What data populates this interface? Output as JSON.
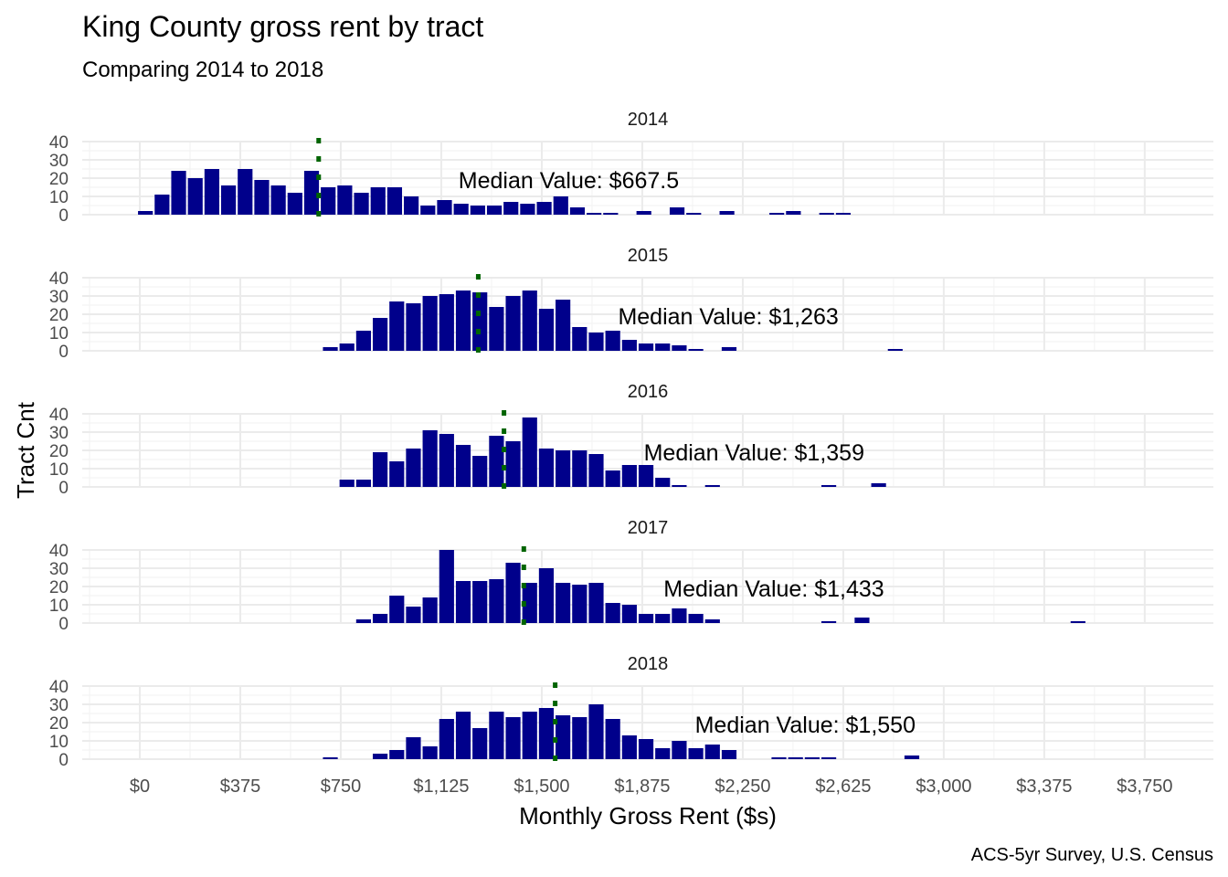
{
  "chart_data": {
    "type": "bar",
    "title": "King County gross rent by tract",
    "subtitle": "Comparing 2014 to 2018",
    "xlabel": "Monthly Gross Rent ($s)",
    "ylabel": "Tract Cnt",
    "caption": "ACS-5yr Survey, U.S. Census",
    "xlim": [
      -100,
      3900
    ],
    "ylim": [
      0,
      40
    ],
    "grid": true,
    "bin_width": 62,
    "x_ticks": [
      {
        "value": 0,
        "label": "$0"
      },
      {
        "value": 375,
        "label": "$375"
      },
      {
        "value": 750,
        "label": "$750"
      },
      {
        "value": 1125,
        "label": "$1,125"
      },
      {
        "value": 1500,
        "label": "$1,500"
      },
      {
        "value": 1875,
        "label": "$1,875"
      },
      {
        "value": 2250,
        "label": "$2,250"
      },
      {
        "value": 2625,
        "label": "$2,625"
      },
      {
        "value": 3000,
        "label": "$3,000"
      },
      {
        "value": 3375,
        "label": "$3,375"
      },
      {
        "value": 3750,
        "label": "$3,750"
      }
    ],
    "y_ticks": [
      {
        "value": 0,
        "label": "0"
      },
      {
        "value": 10,
        "label": "10"
      },
      {
        "value": 20,
        "label": "20"
      },
      {
        "value": 30,
        "label": "30"
      },
      {
        "value": 40,
        "label": "40"
      }
    ],
    "bar_color": "#00008B",
    "median_color": "#006400",
    "panels": [
      {
        "year": "2014",
        "median": 667.5,
        "median_label": "Median Value: $667.5",
        "bins": [
          [
            -10,
            2
          ],
          [
            52,
            11
          ],
          [
            114,
            24
          ],
          [
            176,
            20
          ],
          [
            238,
            25
          ],
          [
            300,
            16
          ],
          [
            362,
            25
          ],
          [
            424,
            19
          ],
          [
            486,
            16
          ],
          [
            548,
            12
          ],
          [
            610,
            24
          ],
          [
            672,
            15
          ],
          [
            734,
            16
          ],
          [
            796,
            12
          ],
          [
            858,
            15
          ],
          [
            920,
            15
          ],
          [
            982,
            10
          ],
          [
            1044,
            5
          ],
          [
            1106,
            8
          ],
          [
            1168,
            6
          ],
          [
            1230,
            5
          ],
          [
            1292,
            5
          ],
          [
            1354,
            7
          ],
          [
            1416,
            6
          ],
          [
            1478,
            7
          ],
          [
            1540,
            10
          ],
          [
            1602,
            4
          ],
          [
            1664,
            1
          ],
          [
            1726,
            1
          ],
          [
            1850,
            2
          ],
          [
            1974,
            4
          ],
          [
            2036,
            1
          ],
          [
            2160,
            2
          ],
          [
            2346,
            1
          ],
          [
            2408,
            2
          ],
          [
            2532,
            1
          ],
          [
            2594,
            1
          ]
        ]
      },
      {
        "year": "2015",
        "median": 1263,
        "median_label": "Median Value: $1,263",
        "bins": [
          [
            680,
            2
          ],
          [
            742,
            4
          ],
          [
            804,
            11
          ],
          [
            866,
            18
          ],
          [
            928,
            27
          ],
          [
            990,
            26
          ],
          [
            1052,
            30
          ],
          [
            1114,
            31
          ],
          [
            1176,
            33
          ],
          [
            1238,
            32
          ],
          [
            1300,
            24
          ],
          [
            1362,
            30
          ],
          [
            1424,
            33
          ],
          [
            1486,
            23
          ],
          [
            1548,
            28
          ],
          [
            1610,
            13
          ],
          [
            1672,
            10
          ],
          [
            1734,
            11
          ],
          [
            1796,
            6
          ],
          [
            1858,
            4
          ],
          [
            1920,
            4
          ],
          [
            1982,
            3
          ],
          [
            2044,
            1
          ],
          [
            2168,
            2
          ],
          [
            2788,
            1
          ]
        ]
      },
      {
        "year": "2016",
        "median": 1359,
        "median_label": "Median Value: $1,359",
        "bins": [
          [
            742,
            4
          ],
          [
            804,
            4
          ],
          [
            866,
            19
          ],
          [
            928,
            14
          ],
          [
            990,
            21
          ],
          [
            1052,
            31
          ],
          [
            1114,
            29
          ],
          [
            1176,
            23
          ],
          [
            1238,
            17
          ],
          [
            1300,
            28
          ],
          [
            1362,
            25
          ],
          [
            1424,
            38
          ],
          [
            1486,
            21
          ],
          [
            1548,
            20
          ],
          [
            1610,
            20
          ],
          [
            1672,
            18
          ],
          [
            1734,
            9
          ],
          [
            1796,
            12
          ],
          [
            1858,
            12
          ],
          [
            1920,
            5
          ],
          [
            1982,
            1
          ],
          [
            2106,
            1
          ],
          [
            2540,
            1
          ],
          [
            2726,
            2
          ]
        ]
      },
      {
        "year": "2017",
        "median": 1433,
        "median_label": "Median Value: $1,433",
        "bins": [
          [
            804,
            2
          ],
          [
            866,
            5
          ],
          [
            928,
            15
          ],
          [
            990,
            9
          ],
          [
            1052,
            14
          ],
          [
            1114,
            40
          ],
          [
            1176,
            23
          ],
          [
            1238,
            23
          ],
          [
            1300,
            24
          ],
          [
            1362,
            33
          ],
          [
            1424,
            22
          ],
          [
            1486,
            30
          ],
          [
            1548,
            22
          ],
          [
            1610,
            21
          ],
          [
            1672,
            22
          ],
          [
            1734,
            11
          ],
          [
            1796,
            10
          ],
          [
            1858,
            5
          ],
          [
            1920,
            5
          ],
          [
            1982,
            8
          ],
          [
            2044,
            5
          ],
          [
            2106,
            2
          ],
          [
            2540,
            1
          ],
          [
            2664,
            3
          ],
          [
            3470,
            1
          ]
        ]
      },
      {
        "year": "2018",
        "median": 1550,
        "median_label": "Median Value: $1,550",
        "bins": [
          [
            680,
            1
          ],
          [
            866,
            3
          ],
          [
            928,
            5
          ],
          [
            990,
            12
          ],
          [
            1052,
            7
          ],
          [
            1114,
            22
          ],
          [
            1176,
            26
          ],
          [
            1238,
            17
          ],
          [
            1300,
            26
          ],
          [
            1362,
            23
          ],
          [
            1424,
            26
          ],
          [
            1486,
            28
          ],
          [
            1548,
            24
          ],
          [
            1610,
            23
          ],
          [
            1672,
            30
          ],
          [
            1734,
            22
          ],
          [
            1796,
            13
          ],
          [
            1858,
            11
          ],
          [
            1920,
            6
          ],
          [
            1982,
            10
          ],
          [
            2044,
            6
          ],
          [
            2106,
            8
          ],
          [
            2168,
            5
          ],
          [
            2354,
            1
          ],
          [
            2416,
            1
          ],
          [
            2478,
            1
          ],
          [
            2540,
            1
          ],
          [
            2850,
            2
          ]
        ]
      }
    ]
  }
}
